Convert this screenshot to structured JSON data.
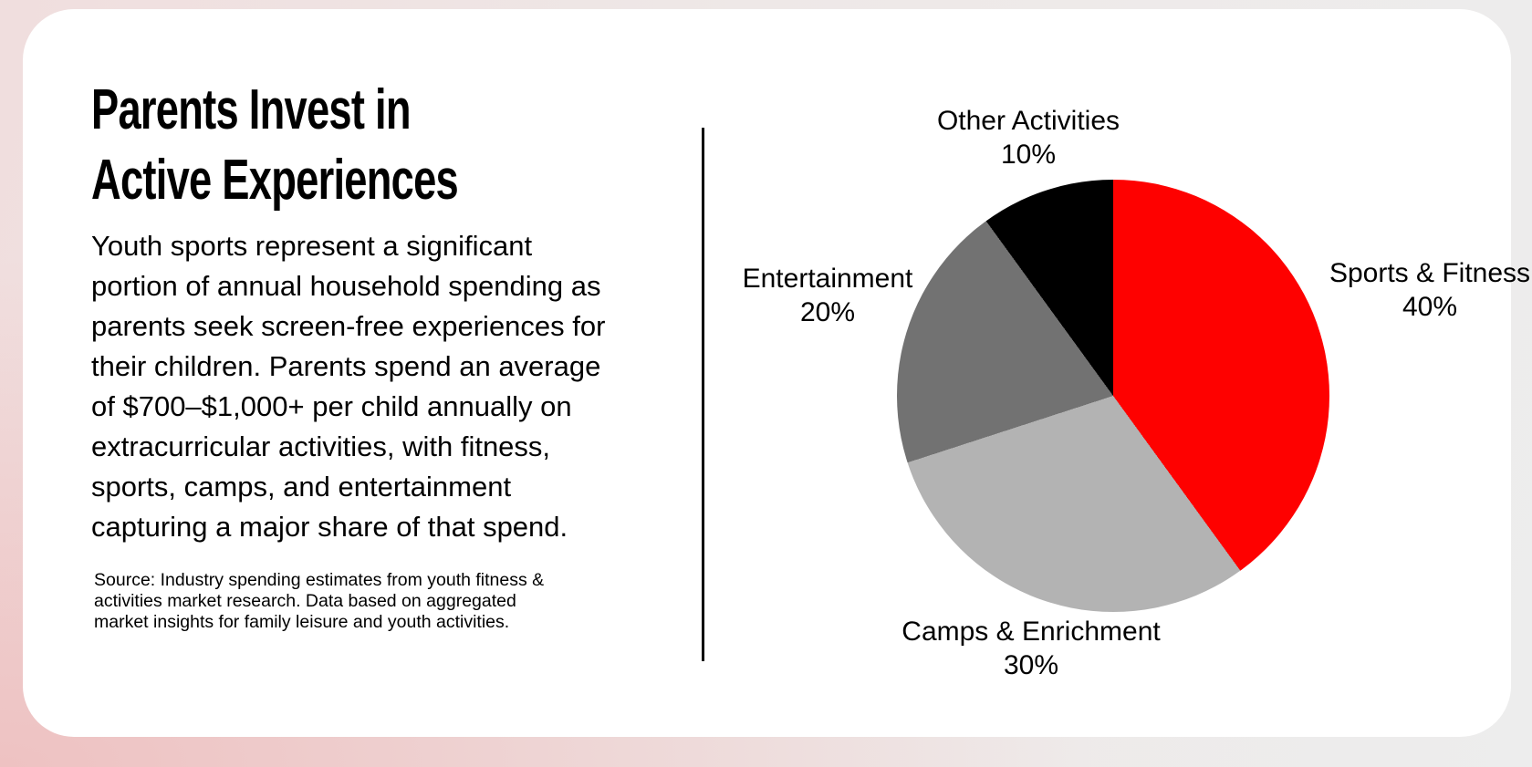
{
  "slide": {
    "title": "Parents Invest in\nActive Experiences",
    "body": "Youth sports represent a significant\nportion of annual household spending as\nparents seek screen-free experiences for\ntheir children. Parents spend an average\nof $700–$1,000+ per child annually on\nextracurricular activities, with fitness,\nsports, camps, and entertainment\ncapturing a major share of that spend.",
    "source": "Source: Industry spending estimates from youth fitness &\nactivities market research. Data based on aggregated\nmarket insights for family leisure and youth activities."
  },
  "chart_data": {
    "type": "pie",
    "title": "",
    "categories": [
      "Sports & Fitness",
      "Camps & Enrichment",
      "Entertainment",
      "Other Activities"
    ],
    "values": [
      40,
      30,
      20,
      10
    ],
    "value_labels": [
      "40%",
      "30%",
      "20%",
      "10%"
    ],
    "colors": [
      "#fe0100",
      "#b3b3b3",
      "#727272",
      "#000000"
    ],
    "start_angle_deg": 0,
    "direction": "clockwise",
    "legend_position": "none",
    "label_positions": [
      "right",
      "bottom",
      "left",
      "top"
    ]
  },
  "theme": {
    "card_background": "#ffffff",
    "accent_red": "#fe0100",
    "background_pink": "#eec2c2",
    "background_gray": "#ededed"
  }
}
